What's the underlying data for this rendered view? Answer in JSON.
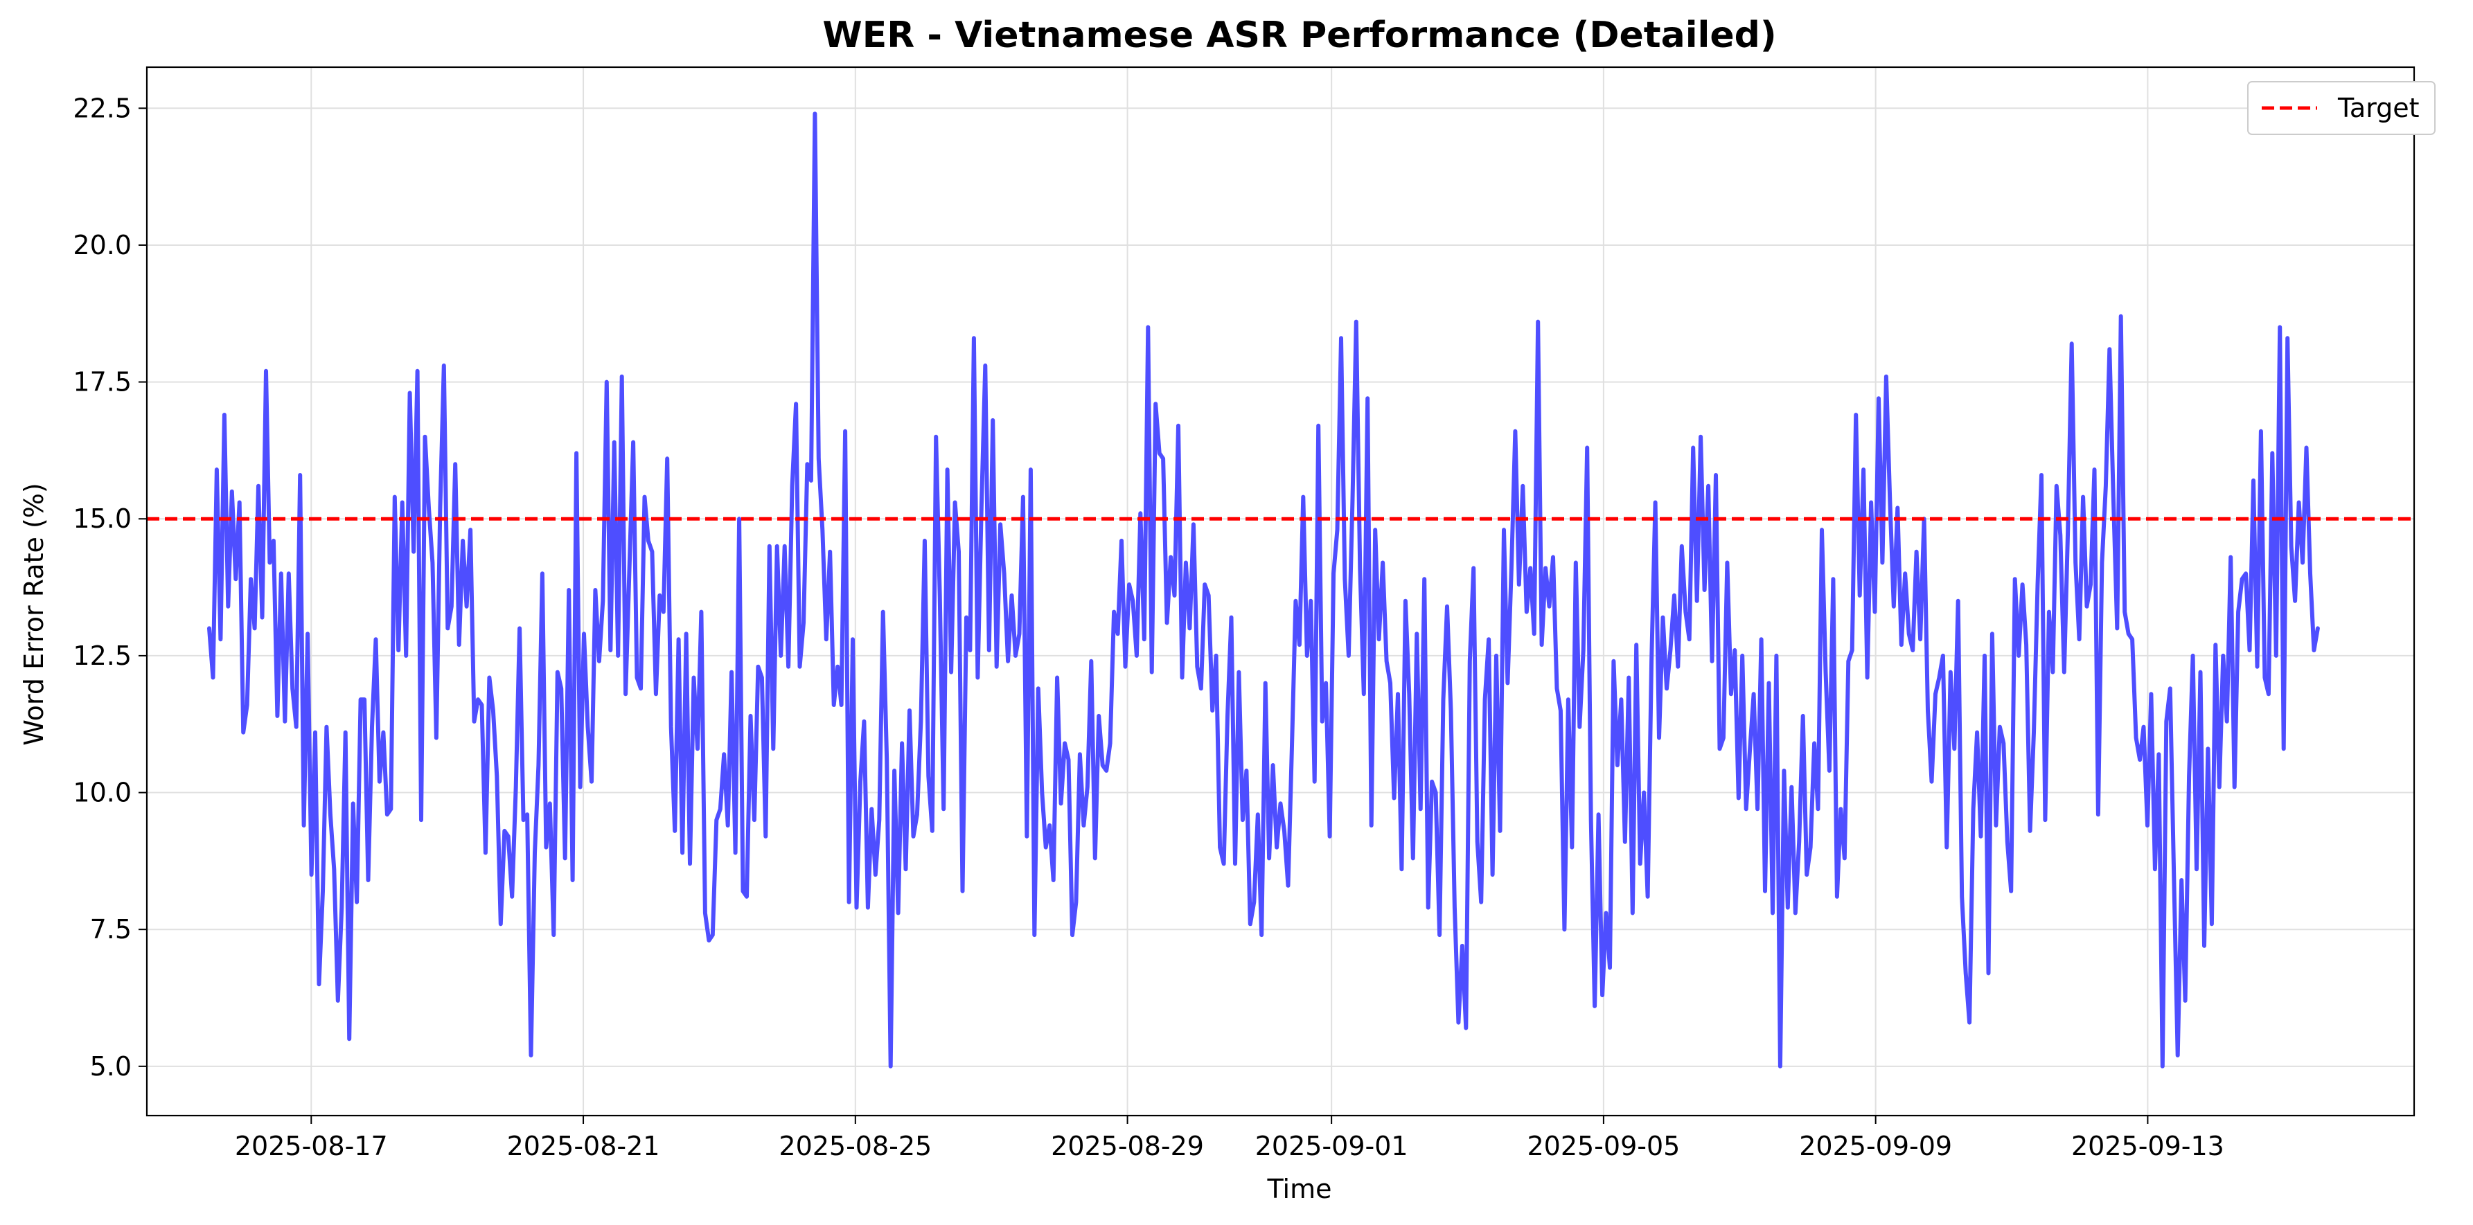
{
  "chart_data": {
    "type": "line",
    "title": "WER - Vietnamese ASR Performance (Detailed)",
    "xlabel": "Time",
    "ylabel": "Word Error Rate (%)",
    "x_range": [
      "2025-08-14T14:00",
      "2025-09-16T22:00"
    ],
    "ylim": [
      4.1,
      23.25
    ],
    "x_ticks": [
      "2025-08-17",
      "2025-08-21",
      "2025-08-25",
      "2025-08-29",
      "2025-09-01",
      "2025-09-05",
      "2025-09-09",
      "2025-09-13"
    ],
    "y_ticks": [
      5.0,
      7.5,
      10.0,
      12.5,
      15.0,
      17.5,
      20.0,
      22.5
    ],
    "y_tick_labels": [
      "5.0",
      "7.5",
      "10.0",
      "12.5",
      "15.0",
      "17.5",
      "20.0",
      "22.5"
    ],
    "grid": true,
    "legend_position": "upper right",
    "series": [
      {
        "name": "",
        "color": "#4a4aff",
        "x_start": "2025-08-15T12:00",
        "x_end": "2025-09-15T12:00",
        "values": [
          13.0,
          12.1,
          15.9,
          12.8,
          16.9,
          13.4,
          15.5,
          13.9,
          15.3,
          11.1,
          11.6,
          13.9,
          13.0,
          15.6,
          13.2,
          17.7,
          14.2,
          14.6,
          11.4,
          14.0,
          11.3,
          14.0,
          11.9,
          11.2,
          15.8,
          9.4,
          12.9,
          8.5,
          11.1,
          6.5,
          8.2,
          11.2,
          9.6,
          8.6,
          6.2,
          7.9,
          11.1,
          5.5,
          9.8,
          8.0,
          11.7,
          11.7,
          8.4,
          11.2,
          12.8,
          10.2,
          11.1,
          9.6,
          9.7,
          15.4,
          12.6,
          15.3,
          12.5,
          17.3,
          14.4,
          17.7,
          9.5,
          16.5,
          15.2,
          14.2,
          11.0,
          15.2,
          17.8,
          13.0,
          13.4,
          16.0,
          12.7,
          14.6,
          13.4,
          14.8,
          11.3,
          11.7,
          11.6,
          8.9,
          12.1,
          11.5,
          10.3,
          7.6,
          9.3,
          9.2,
          8.1,
          10.1,
          13.0,
          9.5,
          9.6,
          5.2,
          8.9,
          10.5,
          14.0,
          9.0,
          9.8,
          7.4,
          12.2,
          11.9,
          8.8,
          13.7,
          8.4,
          16.2,
          10.1,
          12.9,
          11.2,
          10.2,
          13.7,
          12.4,
          13.5,
          17.5,
          12.6,
          16.4,
          12.5,
          17.6,
          11.8,
          14.1,
          16.4,
          12.1,
          11.9,
          15.4,
          14.6,
          14.4,
          11.8,
          13.6,
          13.3,
          16.1,
          11.2,
          9.3,
          12.8,
          8.9,
          12.9,
          8.7,
          12.1,
          10.8,
          13.3,
          7.8,
          7.3,
          7.4,
          9.5,
          9.7,
          10.7,
          9.4,
          12.2,
          8.9,
          15.0,
          8.2,
          8.1,
          11.4,
          9.5,
          12.3,
          12.1,
          9.2,
          14.5,
          10.8,
          14.5,
          12.5,
          14.5,
          12.3,
          15.6,
          17.1,
          12.3,
          13.1,
          16.0,
          15.7,
          22.4,
          16.1,
          14.8,
          12.8,
          14.4,
          11.6,
          12.3,
          11.6,
          16.6,
          8.0,
          12.8,
          7.9,
          10.2,
          11.3,
          7.9,
          9.7,
          8.5,
          9.5,
          13.3,
          10.6,
          5.0,
          10.4,
          7.8,
          10.9,
          8.6,
          11.5,
          9.2,
          9.6,
          11.3,
          14.6,
          10.3,
          9.3,
          16.5,
          13.6,
          9.7,
          15.9,
          12.2,
          15.3,
          14.4,
          8.2,
          13.2,
          12.6,
          18.3,
          12.1,
          15.2,
          17.8,
          12.6,
          16.8,
          12.3,
          14.9,
          14.0,
          12.4,
          13.6,
          12.5,
          12.9,
          15.4,
          9.2,
          15.9,
          7.4,
          11.9,
          10.0,
          9.0,
          9.4,
          8.4,
          12.1,
          9.8,
          10.9,
          10.6,
          7.4,
          8.0,
          10.7,
          9.4,
          10.1,
          12.4,
          8.8,
          11.4,
          10.5,
          10.4,
          10.9,
          13.3,
          12.9,
          14.6,
          12.3,
          13.8,
          13.5,
          12.5,
          15.1,
          12.8,
          18.5,
          12.2,
          17.1,
          16.2,
          16.1,
          13.1,
          14.3,
          13.6,
          16.7,
          12.1,
          14.2,
          13.0,
          14.9,
          12.3,
          11.9,
          13.8,
          13.6,
          11.5,
          12.5,
          9.0,
          8.7,
          11.4,
          13.2,
          8.7,
          12.2,
          9.5,
          10.4,
          7.6,
          8.0,
          9.6,
          7.4,
          12.0,
          8.8,
          10.5,
          9.0,
          9.8,
          9.3,
          8.3,
          10.8,
          13.5,
          12.7,
          15.4,
          12.5,
          13.5,
          10.2,
          16.7,
          11.3,
          12.0,
          9.2,
          14.0,
          14.8,
          18.3,
          13.9,
          12.5,
          15.3,
          18.6,
          14.1,
          11.8,
          17.2,
          9.4,
          14.8,
          12.8,
          14.2,
          12.4,
          12.0,
          9.9,
          11.8,
          8.6,
          13.5,
          11.8,
          8.8,
          12.9,
          9.7,
          13.9,
          7.9,
          10.2,
          10.0,
          7.4,
          11.7,
          13.4,
          11.5,
          7.9,
          5.8,
          7.2,
          5.7,
          12.4,
          14.1,
          9.1,
          8.0,
          11.7,
          12.8,
          8.5,
          12.5,
          9.3,
          14.8,
          12.0,
          14.1,
          16.6,
          13.8,
          15.6,
          13.3,
          14.1,
          12.9,
          18.6,
          12.7,
          14.1,
          13.4,
          14.3,
          11.9,
          11.5,
          7.5,
          11.7,
          9.0,
          14.2,
          11.2,
          12.6,
          16.3,
          9.5,
          6.1,
          9.6,
          6.3,
          7.8,
          6.8,
          12.4,
          10.5,
          11.7,
          9.1,
          12.1,
          7.8,
          12.7,
          8.7,
          10.0,
          8.1,
          12.4,
          15.3,
          11.0,
          13.2,
          11.9,
          12.6,
          13.6,
          12.3,
          14.5,
          13.3,
          12.8,
          16.3,
          13.5,
          16.5,
          13.7,
          15.6,
          12.4,
          15.8,
          10.8,
          11.0,
          14.2,
          11.8,
          12.6,
          9.9,
          12.5,
          9.7,
          10.8,
          11.8,
          9.7,
          12.8,
          8.2,
          12.0,
          7.8,
          12.5,
          5.0,
          10.4,
          7.9,
          10.1,
          7.8,
          9.1,
          11.4,
          8.5,
          9.0,
          10.9,
          9.7,
          14.8,
          12.2,
          10.4,
          13.9,
          8.1,
          9.7,
          8.8,
          12.4,
          12.6,
          16.9,
          13.6,
          15.9,
          12.1,
          15.3,
          13.3,
          17.2,
          14.2,
          17.6,
          15.3,
          13.4,
          15.2,
          12.7,
          14.0,
          12.9,
          12.6,
          14.4,
          12.8,
          15.0,
          11.5,
          10.2,
          11.8,
          12.1,
          12.5,
          9.0,
          12.2,
          10.8,
          13.5,
          8.1,
          6.7,
          5.8,
          9.7,
          11.1,
          9.2,
          12.5,
          6.7,
          12.9,
          9.4,
          11.2,
          10.9,
          9.1,
          8.2,
          13.9,
          12.5,
          13.8,
          12.7,
          9.3,
          11.1,
          13.8,
          15.8,
          9.5,
          13.3,
          12.2,
          15.6,
          14.7,
          12.2,
          14.8,
          18.2,
          14.2,
          12.8,
          15.4,
          13.4,
          13.8,
          15.9,
          9.6,
          14.2,
          15.6,
          18.1,
          15.4,
          13.0,
          18.7,
          13.3,
          12.9,
          12.8,
          11.0,
          10.6,
          11.2,
          9.4,
          11.8,
          8.6,
          10.7,
          5.0,
          11.3,
          11.9,
          8.5,
          5.2,
          8.4,
          6.2,
          10.3,
          12.5,
          8.6,
          12.2,
          7.2,
          10.8,
          7.6,
          12.7,
          10.1,
          12.5,
          11.3,
          14.3,
          10.1,
          13.3,
          13.9,
          14.0,
          12.6,
          15.7,
          12.3,
          16.6,
          12.1,
          11.8,
          16.2,
          12.5,
          18.5,
          10.8,
          18.3,
          14.5,
          13.5,
          15.3,
          14.2,
          16.3,
          14.0,
          12.6,
          13.0
        ]
      },
      {
        "name": "Target",
        "color": "#ff0000",
        "dashed": true,
        "values": [
          15.0
        ]
      }
    ]
  }
}
